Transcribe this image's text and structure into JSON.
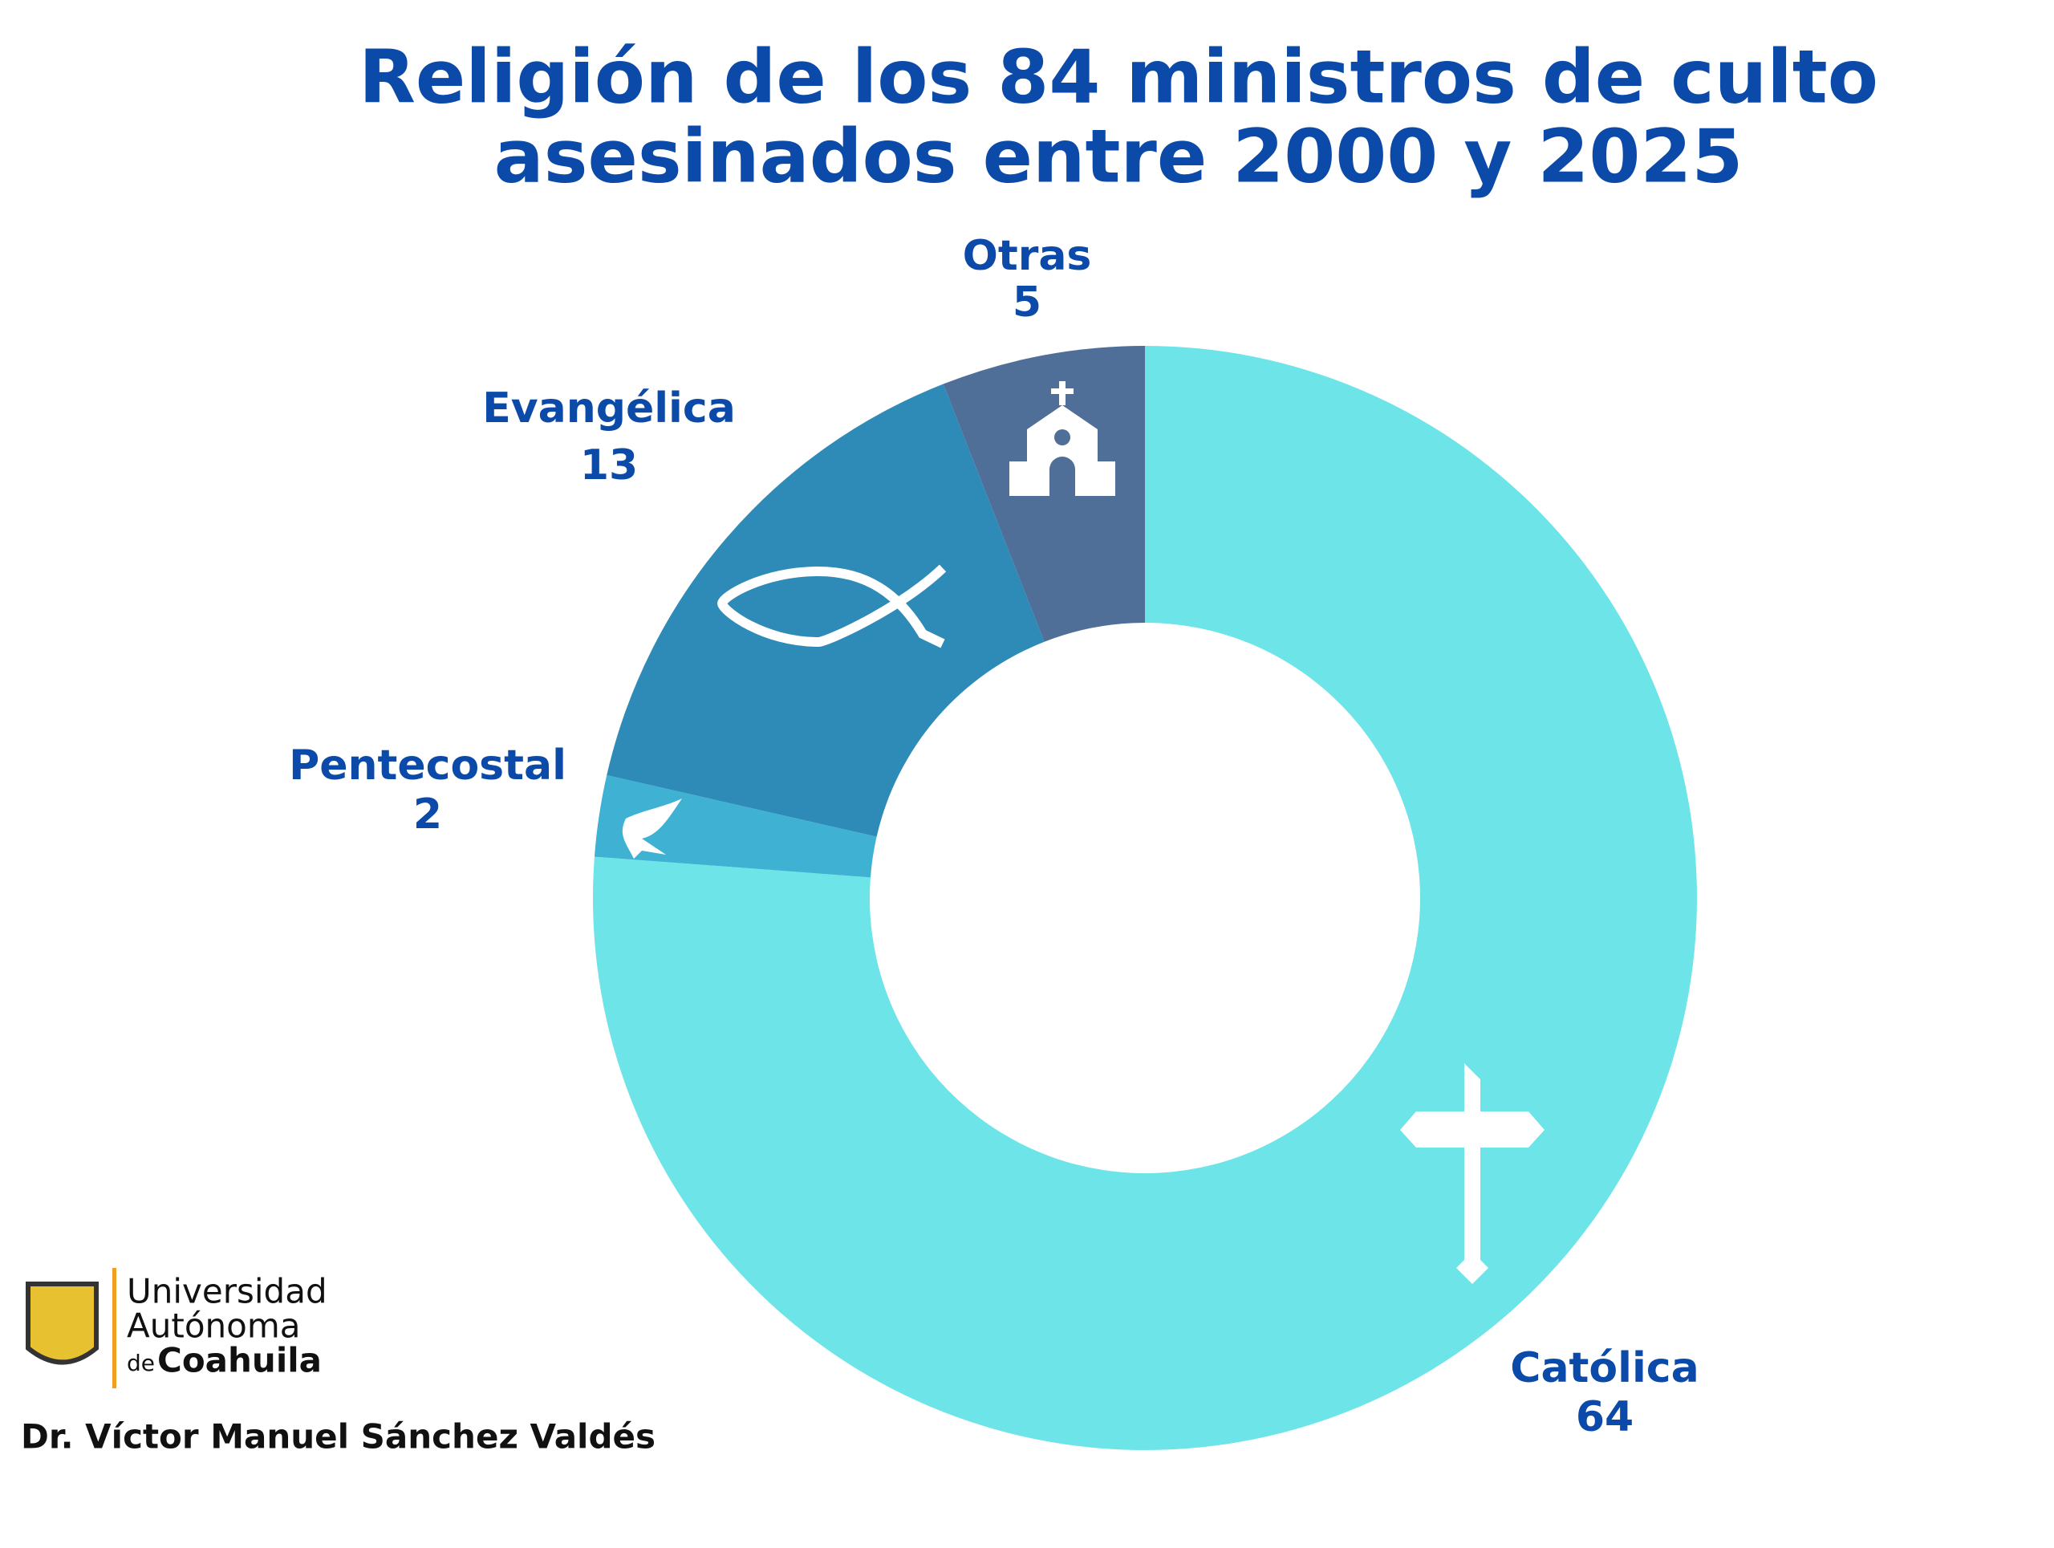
{
  "chart_data": {
    "type": "donut",
    "title": [
      "Religión de los 84 ministros de culto",
      "asesinados entre 2000 y 2025"
    ],
    "categories": [
      "Católica",
      "Pentecostal",
      "Evangélica",
      "Otras"
    ],
    "values": [
      64,
      2,
      13,
      5
    ],
    "colors": [
      "#6de4e8",
      "#3fb2d4",
      "#2e8bb8",
      "#4f6f98"
    ]
  },
  "footer": {
    "logo": {
      "line1": "Universidad",
      "line2": "Autónoma",
      "prefix": "de",
      "line3": "Coahuila"
    },
    "author": "Dr. Víctor Manuel Sánchez Valdés"
  }
}
